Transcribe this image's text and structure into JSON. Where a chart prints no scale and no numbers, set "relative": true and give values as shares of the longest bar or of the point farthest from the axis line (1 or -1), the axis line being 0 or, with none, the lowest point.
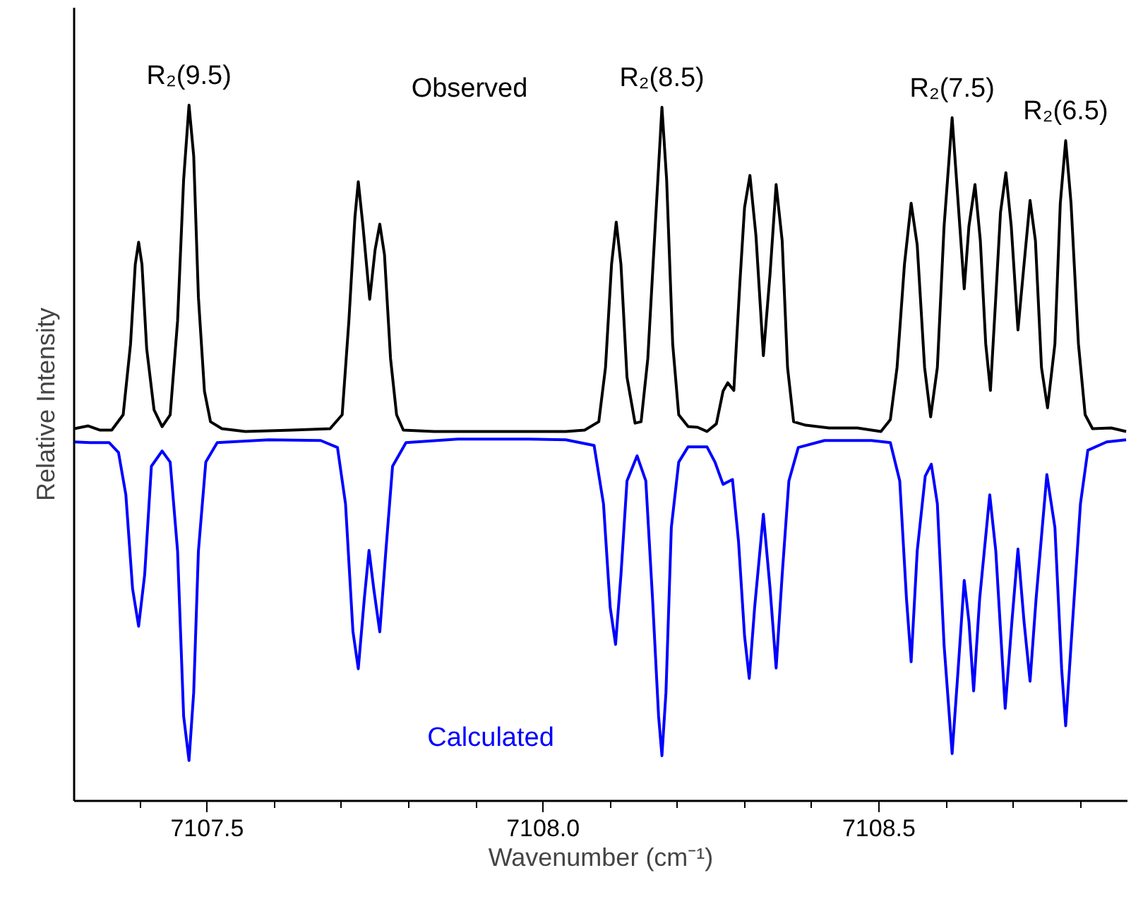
{
  "chart_data": {
    "type": "line",
    "relative": true,
    "xlabel": "Wavenumber (cm⁻¹)",
    "ylabel": "Relative Intensity",
    "xlim": [
      7107.302,
      7108.87
    ],
    "xticks": [
      7107.5,
      {
        "value": 7108.0,
        "label": "7108.0"
      },
      7108.5
    ],
    "tick_labels": "x",
    "legend": false,
    "marker": "none",
    "line_style": "solid",
    "series": [
      {
        "name": "Observed",
        "color": "#000000",
        "x": [
          7107.302,
          7107.323,
          7107.34,
          7107.358,
          7107.375,
          7107.386,
          7107.393,
          7107.398,
          7107.403,
          7107.41,
          7107.421,
          7107.433,
          7107.445,
          7107.456,
          7107.465,
          7107.473,
          7107.48,
          7107.487,
          7107.496,
          7107.505,
          7107.522,
          7107.557,
          7107.627,
          7107.683,
          7107.701,
          7107.711,
          7107.72,
          7107.725,
          7107.732,
          7107.742,
          7107.75,
          7107.757,
          7107.764,
          7107.773,
          7107.782,
          7107.792,
          7107.838,
          7107.908,
          7107.978,
          7108.034,
          7108.062,
          7108.083,
          7108.093,
          7108.102,
          7108.109,
          7108.116,
          7108.125,
          7108.137,
          7108.146,
          7108.156,
          7108.167,
          7108.177,
          7108.184,
          7108.193,
          7108.202,
          7108.216,
          7108.23,
          7108.244,
          7108.258,
          7108.268,
          7108.275,
          7108.284,
          7108.293,
          7108.3,
          7108.308,
          7108.317,
          7108.328,
          7108.338,
          7108.347,
          7108.356,
          7108.364,
          7108.373,
          7108.391,
          7108.426,
          7108.468,
          7108.503,
          7108.517,
          7108.527,
          7108.538,
          7108.548,
          7108.557,
          7108.568,
          7108.577,
          7108.587,
          7108.597,
          7108.609,
          7108.618,
          7108.627,
          7108.634,
          7108.643,
          7108.651,
          7108.659,
          7108.666,
          7108.674,
          7108.681,
          7108.689,
          7108.697,
          7108.707,
          7108.716,
          7108.725,
          7108.733,
          7108.742,
          7108.751,
          7108.762,
          7108.77,
          7108.778,
          7108.786,
          7108.797,
          7108.807,
          7108.818,
          7108.846,
          7108.868
        ],
        "values": [
          0.535,
          0.539,
          0.533,
          0.533,
          0.555,
          0.657,
          0.771,
          0.803,
          0.771,
          0.65,
          0.562,
          0.538,
          0.555,
          0.69,
          0.893,
          1.0,
          0.927,
          0.724,
          0.589,
          0.545,
          0.535,
          0.531,
          0.533,
          0.535,
          0.555,
          0.69,
          0.839,
          0.89,
          0.826,
          0.721,
          0.792,
          0.829,
          0.785,
          0.636,
          0.555,
          0.533,
          0.531,
          0.531,
          0.531,
          0.531,
          0.533,
          0.545,
          0.623,
          0.771,
          0.832,
          0.771,
          0.609,
          0.543,
          0.545,
          0.636,
          0.826,
          0.997,
          0.893,
          0.657,
          0.555,
          0.538,
          0.537,
          0.531,
          0.542,
          0.589,
          0.601,
          0.59,
          0.744,
          0.853,
          0.899,
          0.812,
          0.64,
          0.758,
          0.886,
          0.805,
          0.623,
          0.545,
          0.54,
          0.536,
          0.536,
          0.531,
          0.548,
          0.623,
          0.771,
          0.859,
          0.799,
          0.623,
          0.552,
          0.623,
          0.826,
          0.982,
          0.859,
          0.736,
          0.826,
          0.886,
          0.805,
          0.657,
          0.59,
          0.724,
          0.846,
          0.903,
          0.826,
          0.677,
          0.771,
          0.863,
          0.805,
          0.623,
          0.565,
          0.657,
          0.859,
          0.949,
          0.859,
          0.657,
          0.555,
          0.535,
          0.536,
          0.531
        ]
      },
      {
        "name": "Calculated",
        "color": "#0000ff",
        "x": [
          7107.302,
          7107.326,
          7107.354,
          7107.368,
          7107.379,
          7107.389,
          7107.398,
          7107.407,
          7107.417,
          7107.433,
          7107.445,
          7107.456,
          7107.465,
          7107.473,
          7107.48,
          7107.487,
          7107.498,
          7107.515,
          7107.592,
          7107.669,
          7107.694,
          7107.706,
          7107.717,
          7107.725,
          7107.734,
          7107.741,
          7107.748,
          7107.757,
          7107.766,
          7107.776,
          7107.796,
          7107.873,
          7107.978,
          7108.034,
          7108.076,
          7108.09,
          7108.1,
          7108.108,
          7108.116,
          7108.125,
          7108.14,
          7108.153,
          7108.163,
          7108.172,
          7108.177,
          7108.183,
          7108.191,
          7108.202,
          7108.216,
          7108.244,
          7108.256,
          7108.268,
          7108.282,
          7108.291,
          7108.3,
          7108.307,
          7108.315,
          7108.328,
          7108.338,
          7108.347,
          7108.356,
          7108.366,
          7108.38,
          7108.419,
          7108.489,
          7108.517,
          7108.531,
          7108.541,
          7108.548,
          7108.557,
          7108.569,
          7108.578,
          7108.587,
          7108.597,
          7108.609,
          7108.618,
          7108.627,
          7108.634,
          7108.641,
          7108.65,
          7108.665,
          7108.674,
          7108.688,
          7108.698,
          7108.707,
          7108.716,
          7108.725,
          7108.734,
          7108.75,
          7108.762,
          7108.772,
          7108.778,
          7108.786,
          7108.8,
          7108.811,
          7108.839,
          7108.868
        ],
        "values": [
          0.516,
          0.515,
          0.515,
          0.501,
          0.44,
          0.305,
          0.251,
          0.325,
          0.481,
          0.503,
          0.487,
          0.359,
          0.122,
          0.058,
          0.156,
          0.359,
          0.487,
          0.515,
          0.519,
          0.518,
          0.508,
          0.427,
          0.244,
          0.19,
          0.291,
          0.36,
          0.305,
          0.243,
          0.359,
          0.481,
          0.515,
          0.52,
          0.52,
          0.519,
          0.511,
          0.427,
          0.278,
          0.225,
          0.325,
          0.46,
          0.496,
          0.46,
          0.291,
          0.122,
          0.065,
          0.156,
          0.393,
          0.487,
          0.509,
          0.509,
          0.487,
          0.455,
          0.462,
          0.373,
          0.237,
          0.176,
          0.278,
          0.412,
          0.305,
          0.191,
          0.325,
          0.46,
          0.508,
          0.518,
          0.518,
          0.515,
          0.46,
          0.291,
          0.2,
          0.359,
          0.467,
          0.484,
          0.427,
          0.224,
          0.068,
          0.19,
          0.317,
          0.258,
          0.158,
          0.291,
          0.44,
          0.359,
          0.133,
          0.258,
          0.362,
          0.258,
          0.172,
          0.291,
          0.469,
          0.393,
          0.19,
          0.108,
          0.224,
          0.427,
          0.504,
          0.516,
          0.519
        ]
      }
    ],
    "annotations": [
      {
        "text": "R₂(9.5)",
        "x": 7107.473,
        "y": 1.0
      },
      {
        "text": "R₂(8.5)",
        "x": 7108.177,
        "y": 0.997
      },
      {
        "text": "R₂(7.5)",
        "x": 7108.609,
        "y": 0.982
      },
      {
        "text": "R₂(6.5)",
        "x": 7108.778,
        "y": 0.949
      }
    ]
  }
}
